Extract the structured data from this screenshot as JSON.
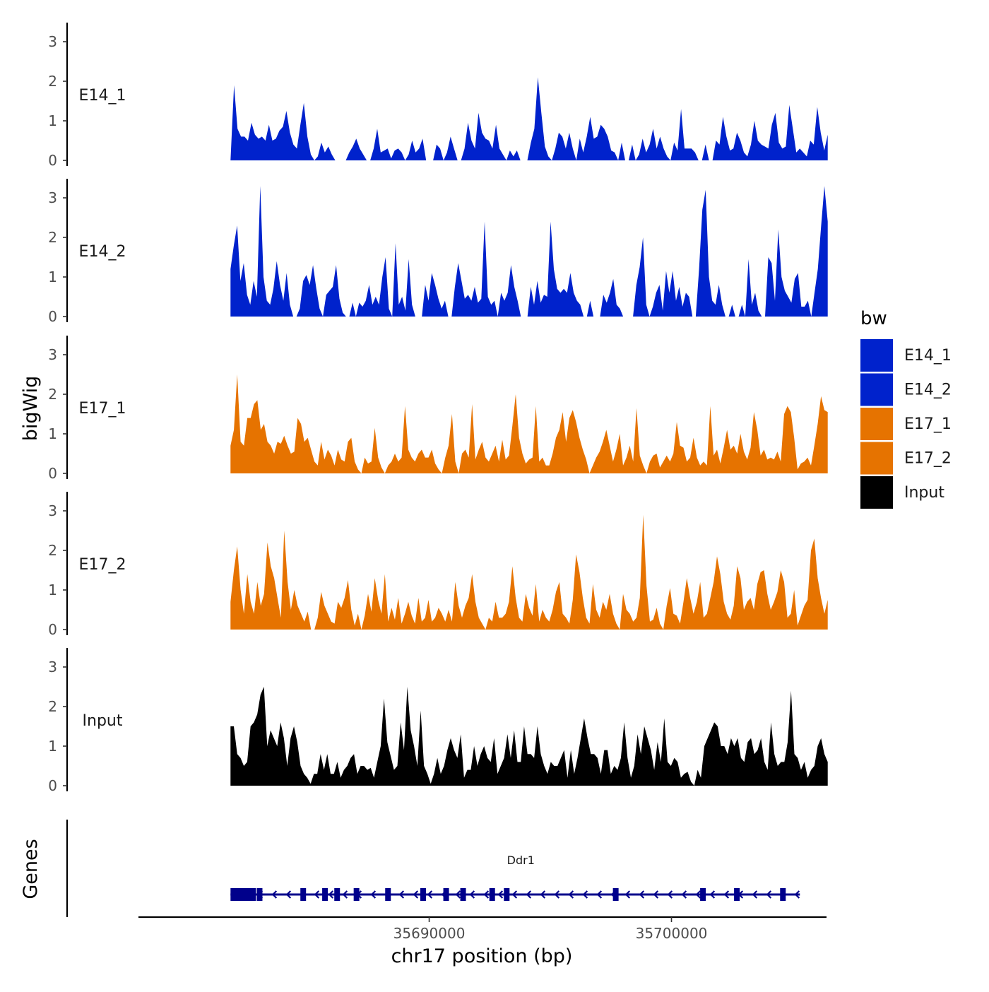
{
  "chart_data": {
    "type": "area",
    "chromosome": "chr17",
    "ylabel": "bigWig",
    "xlabel": "chr17 position (bp)",
    "ylim": [
      0,
      3.5
    ],
    "yticks": [
      "0",
      "1",
      "2",
      "3"
    ],
    "xlim": [
      35678000,
      35706400
    ],
    "x_start": 35681800,
    "x_end": 35706450,
    "xticks": [
      {
        "value": 35690000,
        "label": "35690000"
      },
      {
        "value": 35700000,
        "label": "35700000"
      }
    ],
    "series": [
      {
        "name": "E14_1",
        "color": "#0022cc",
        "values": [
          0,
          1.9,
          0.8,
          0.6,
          0.6,
          0.5,
          0.95,
          0.65,
          0.55,
          0.6,
          0.5,
          0.9,
          0.5,
          0.55,
          0.75,
          0.85,
          1.25,
          0.7,
          0.4,
          0.3,
          0.9,
          1.45,
          0.6,
          0.15,
          0,
          0.1,
          0.45,
          0.2,
          0.35,
          0.15,
          0,
          0,
          0,
          0,
          0.2,
          0.35,
          0.55,
          0.3,
          0.15,
          0,
          0,
          0.3,
          0.8,
          0.2,
          0.25,
          0.3,
          0.05,
          0.25,
          0.3,
          0.2,
          0,
          0.15,
          0.5,
          0.2,
          0.3,
          0.55,
          0,
          0,
          0,
          0.4,
          0.3,
          0,
          0.2,
          0.6,
          0.3,
          0,
          0,
          0.3,
          0.95,
          0.5,
          0.3,
          1.2,
          0.7,
          0.55,
          0.5,
          0.3,
          0.9,
          0.3,
          0.15,
          0,
          0.25,
          0.1,
          0.25,
          0,
          0,
          0,
          0.45,
          0.8,
          2.1,
          1.2,
          0.35,
          0.1,
          0,
          0.3,
          0.7,
          0.6,
          0.3,
          0.7,
          0.3,
          0,
          0.55,
          0.2,
          0.6,
          1.1,
          0.55,
          0.6,
          0.9,
          0.8,
          0.6,
          0.25,
          0.2,
          0,
          0.45,
          0,
          0,
          0.4,
          0,
          0.15,
          0.55,
          0.2,
          0.4,
          0.8,
          0.3,
          0.6,
          0.3,
          0.1,
          0,
          0.45,
          0.25,
          1.3,
          0.3,
          0.3,
          0.3,
          0.2,
          0,
          0,
          0.4,
          0,
          0,
          0.5,
          0.4,
          1.1,
          0.6,
          0.25,
          0.3,
          0.7,
          0.5,
          0.2,
          0.1,
          0.4,
          1.0,
          0.5,
          0.4,
          0.35,
          0.3,
          0.9,
          1.2,
          0.45,
          0.3,
          0.35,
          1.4,
          0.8,
          0.2,
          0.3,
          0.2,
          0.1,
          0.5,
          0.4,
          1.35,
          0.7,
          0.25,
          0.65
        ]
      },
      {
        "name": "E14_2",
        "color": "#0022cc",
        "values": [
          1.2,
          1.8,
          2.3,
          0.9,
          1.35,
          0.55,
          0.3,
          0.9,
          0.5,
          3.3,
          1.0,
          0.4,
          0.3,
          0.7,
          1.4,
          0.8,
          0.4,
          1.1,
          0.3,
          0,
          0,
          0.2,
          0.9,
          1.05,
          0.8,
          1.3,
          0.7,
          0.2,
          0,
          0.55,
          0.65,
          0.75,
          1.3,
          0.45,
          0.1,
          0,
          0,
          0.35,
          0,
          0.35,
          0.25,
          0.4,
          0.8,
          0.3,
          0.5,
          0.3,
          1.0,
          1.5,
          0.2,
          0,
          1.85,
          0.3,
          0.5,
          0.15,
          1.45,
          0.3,
          0,
          0,
          0,
          0.8,
          0.4,
          1.1,
          0.8,
          0.45,
          0.2,
          0.4,
          0,
          0,
          0.75,
          1.35,
          0.9,
          0.45,
          0.55,
          0.4,
          0.75,
          0.35,
          0.45,
          2.4,
          0.5,
          0.3,
          0.4,
          0,
          0.6,
          0.4,
          0.6,
          1.3,
          0.75,
          0.4,
          0,
          0,
          0,
          0.75,
          0.3,
          0.9,
          0.35,
          0.55,
          0.5,
          2.4,
          1.2,
          0.7,
          0.6,
          0.7,
          0.6,
          1.1,
          0.6,
          0.4,
          0.3,
          0,
          0,
          0.4,
          0,
          0,
          0,
          0.55,
          0.35,
          0.6,
          0.95,
          0.3,
          0.2,
          0,
          0,
          0,
          0,
          0.8,
          1.25,
          2.0,
          0.3,
          0,
          0.25,
          0.6,
          0.8,
          0.15,
          1.15,
          0.6,
          1.15,
          0.4,
          0.75,
          0.25,
          0.6,
          0.5,
          0,
          0,
          1.2,
          2.7,
          3.2,
          1.0,
          0.4,
          0.3,
          0.8,
          0.3,
          0,
          0,
          0.3,
          0,
          0,
          0.3,
          0,
          1.45,
          0.3,
          0.6,
          0.15,
          0,
          0,
          1.5,
          1.35,
          0.4,
          2.2,
          1.0,
          0.65,
          0.5,
          0.35,
          0.95,
          1.1,
          0.25,
          0.25,
          0.4,
          0,
          0.6,
          1.2,
          2.3,
          3.3,
          2.4
        ]
      },
      {
        "name": "E17_1",
        "color": "#e67300",
        "values": [
          0.7,
          1.1,
          2.5,
          0.8,
          0.7,
          1.4,
          1.4,
          1.75,
          1.85,
          1.1,
          1.25,
          0.8,
          0.7,
          0.5,
          0.8,
          0.75,
          0.95,
          0.7,
          0.5,
          0.55,
          1.4,
          1.25,
          0.8,
          0.9,
          0.6,
          0.3,
          0.2,
          0.8,
          0.35,
          0.6,
          0.45,
          0.2,
          0.6,
          0.35,
          0.3,
          0.8,
          0.9,
          0.3,
          0.1,
          0,
          0.4,
          0.25,
          0.3,
          1.15,
          0.4,
          0.15,
          0,
          0.2,
          0.3,
          0.5,
          0.3,
          0.4,
          1.7,
          0.6,
          0.4,
          0.3,
          0.5,
          0.6,
          0.4,
          0.4,
          0.6,
          0.25,
          0.1,
          0,
          0.4,
          0.7,
          1.5,
          0.3,
          0,
          0.5,
          0.6,
          0.4,
          1.75,
          0.35,
          0.6,
          0.8,
          0.4,
          0.3,
          0.5,
          0.7,
          0.3,
          0.85,
          0.35,
          0.45,
          1.2,
          2.0,
          0.9,
          0.5,
          0.25,
          0.35,
          0.4,
          1.7,
          0.3,
          0.4,
          0.2,
          0.2,
          0.5,
          0.9,
          1.1,
          1.55,
          0.8,
          1.4,
          1.6,
          1.3,
          0.9,
          0.6,
          0.35,
          0,
          0.2,
          0.4,
          0.55,
          0.8,
          1.1,
          0.7,
          0.3,
          0.6,
          1.0,
          0.2,
          0.4,
          0.7,
          0.3,
          1.65,
          0.45,
          0.2,
          0,
          0.3,
          0.45,
          0.5,
          0.15,
          0.3,
          0.45,
          0.3,
          0.5,
          1.3,
          0.7,
          0.65,
          0.3,
          0.4,
          0.9,
          0.4,
          0.2,
          0.3,
          0.2,
          1.7,
          0.45,
          0.6,
          0.25,
          0.65,
          1.1,
          0.6,
          0.7,
          0.5,
          1.0,
          0.55,
          0.35,
          0.65,
          1.55,
          1.1,
          0.45,
          0.6,
          0.35,
          0.4,
          0.35,
          0.55,
          0.3,
          1.5,
          1.7,
          1.55,
          0.9,
          0.1,
          0.25,
          0.3,
          0.4,
          0.2,
          0.7,
          1.25,
          1.95,
          1.6,
          1.55
        ]
      },
      {
        "name": "E17_2",
        "color": "#e67300",
        "values": [
          0.7,
          1.5,
          2.1,
          1.0,
          0.4,
          1.4,
          0.7,
          0.4,
          1.2,
          0.6,
          0.9,
          2.2,
          1.6,
          1.3,
          0.8,
          0.3,
          2.5,
          1.2,
          0.5,
          1.0,
          0.6,
          0.4,
          0.2,
          0.45,
          0,
          0,
          0.3,
          0.95,
          0.6,
          0.4,
          0.2,
          0.15,
          0.7,
          0.55,
          0.8,
          1.25,
          0.5,
          0.1,
          0.4,
          0,
          0.35,
          0.9,
          0.45,
          1.3,
          0.75,
          0.4,
          1.4,
          0.2,
          0.55,
          0.25,
          0.8,
          0.15,
          0.4,
          0.7,
          0.35,
          0.15,
          0.8,
          0.2,
          0.3,
          0.75,
          0.2,
          0.3,
          0.55,
          0.4,
          0.2,
          0.5,
          0.2,
          1.2,
          0.6,
          0.3,
          0.6,
          0.8,
          1.4,
          0.7,
          0.3,
          0.15,
          0,
          0.3,
          0.2,
          0.7,
          0.3,
          0.3,
          0.4,
          0.7,
          1.6,
          0.8,
          0.3,
          0.2,
          0.9,
          0.55,
          0.35,
          1.15,
          0.2,
          0.5,
          0.3,
          0.2,
          0.5,
          0.95,
          1.2,
          0.4,
          0.3,
          0.15,
          0.75,
          1.9,
          1.45,
          0.8,
          0.3,
          0.15,
          1.15,
          0.5,
          0.3,
          0.7,
          0.5,
          0.9,
          0.4,
          0.15,
          0,
          0.9,
          0.5,
          0.4,
          0.2,
          0.3,
          0.8,
          2.9,
          1.1,
          0.2,
          0.25,
          0.55,
          0.15,
          0,
          0.6,
          1.05,
          0.4,
          0.35,
          0.15,
          0.7,
          1.3,
          0.8,
          0.4,
          0.7,
          1.2,
          0.3,
          0.4,
          0.8,
          1.2,
          1.85,
          1.4,
          0.7,
          0.4,
          0.25,
          0.6,
          1.6,
          1.3,
          0.5,
          0.7,
          0.8,
          0.5,
          1.15,
          1.45,
          1.5,
          0.9,
          0.5,
          0.7,
          0.95,
          1.5,
          1.2,
          0.3,
          0.4,
          1.0,
          0.1,
          0.35,
          0.6,
          0.75,
          2.0,
          2.3,
          1.3,
          0.8,
          0.4,
          0.75
        ]
      },
      {
        "name": "Input",
        "color": "#000000",
        "values": [
          1.5,
          1.5,
          0.8,
          0.7,
          0.5,
          0.6,
          1.5,
          1.6,
          1.8,
          2.3,
          2.5,
          1.0,
          1.4,
          1.2,
          1.0,
          1.6,
          1.2,
          0.5,
          1.2,
          1.5,
          1.1,
          0.5,
          0.3,
          0.2,
          0.05,
          0.3,
          0.3,
          0.8,
          0.4,
          0.8,
          0.3,
          0.3,
          0.6,
          0.2,
          0.4,
          0.5,
          0.7,
          0.8,
          0.3,
          0.5,
          0.5,
          0.4,
          0.45,
          0.2,
          0.6,
          1.0,
          2.2,
          1.1,
          0.75,
          0.4,
          0.5,
          1.6,
          0.9,
          2.5,
          1.4,
          1.0,
          0.5,
          1.9,
          0.5,
          0.3,
          0.05,
          0.3,
          0.7,
          0.3,
          0.5,
          0.9,
          1.2,
          0.9,
          0.7,
          1.3,
          0.2,
          0.4,
          0.4,
          1.0,
          0.5,
          0.8,
          1.0,
          0.7,
          0.6,
          1.2,
          0.3,
          0.5,
          0.7,
          1.3,
          0.7,
          1.4,
          0.6,
          0.6,
          1.5,
          0.8,
          0.8,
          0.7,
          1.5,
          0.8,
          0.5,
          0.3,
          0.6,
          0.5,
          0.5,
          0.7,
          0.9,
          0.2,
          0.9,
          0.3,
          0.7,
          1.2,
          1.7,
          1.2,
          0.8,
          0.8,
          0.7,
          0.3,
          0.9,
          0.9,
          0.3,
          0.5,
          0.4,
          0.7,
          1.6,
          0.7,
          0.2,
          0.5,
          1.3,
          0.8,
          1.5,
          1.2,
          0.9,
          0.4,
          1.1,
          0.6,
          1.7,
          0.6,
          0.5,
          0.7,
          0.6,
          0.2,
          0.3,
          0.35,
          0.1,
          0,
          0.4,
          0.2,
          1.0,
          1.2,
          1.4,
          1.6,
          1.5,
          1.0,
          1.0,
          0.8,
          1.2,
          1.0,
          1.2,
          0.7,
          0.6,
          1.1,
          1.2,
          0.8,
          0.9,
          1.2,
          0.6,
          0.4,
          1.6,
          0.8,
          0.5,
          0.6,
          0.6,
          1.1,
          2.4,
          0.8,
          0.7,
          0.4,
          0.6,
          0.2,
          0.4,
          0.5,
          1.0,
          1.2,
          0.8,
          0.6
        ]
      }
    ],
    "legend_title": "bw",
    "legend_position": "right",
    "genes": [
      {
        "name": "Ddr1",
        "strand": "-",
        "start": 35681800,
        "end": 35705300,
        "exons": [
          35681800,
          35683000,
          35684800,
          35685700,
          35686200,
          35687000,
          35688300,
          35689750,
          35690700,
          35691400,
          35692600,
          35693200,
          35697700,
          35701300,
          35702700,
          35704600
        ]
      }
    ],
    "gene_track_label": "Genes",
    "gene_color": "#00008b"
  }
}
